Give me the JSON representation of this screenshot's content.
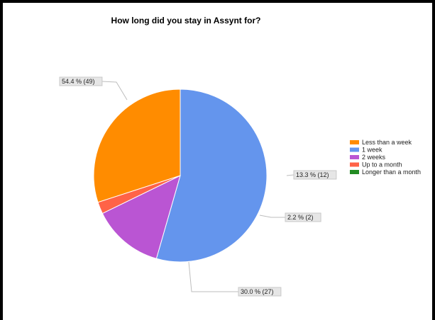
{
  "chart_data": {
    "type": "pie",
    "title": "How long did you stay in Assynt for?",
    "legend_position": "right",
    "slices": [
      {
        "name": "Less than a week",
        "value": 27,
        "percent_label": "30.0 % (27)",
        "color": "#ff8c00"
      },
      {
        "name": "1 week",
        "value": 49,
        "percent_label": "54.4 % (49)",
        "color": "#6495ed"
      },
      {
        "name": "2 weeks",
        "value": 12,
        "percent_label": "13.3 % (12)",
        "color": "#ba55d3"
      },
      {
        "name": "Up to a month",
        "value": 2,
        "percent_label": "2.2 % (2)",
        "color": "#ff6347"
      },
      {
        "name": "Longer than a month",
        "value": 0,
        "percent_label": "",
        "color": "#228b22"
      }
    ]
  }
}
